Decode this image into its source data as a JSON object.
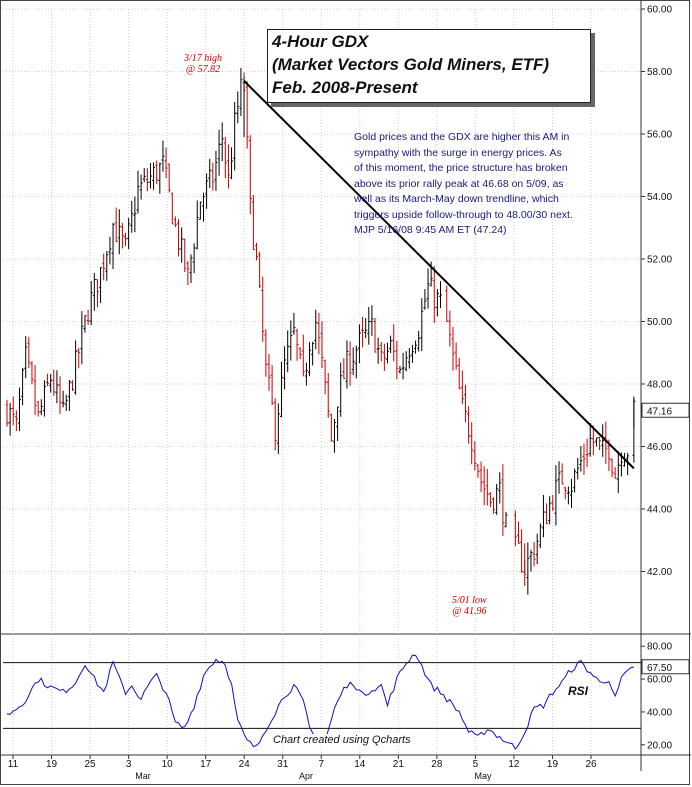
{
  "title": {
    "line1": "4-Hour GDX",
    "line2": "(Market Vectors Gold Miners, ETF)",
    "line3": "Feb. 2008-Present"
  },
  "commentary": [
    "Gold prices and the GDX are higher this AM in",
    "sympathy with the surge in energy prices. As",
    "of this moment, the price structure has broken",
    "above its prior rally peak at 46.68 on 5/09, as",
    "well as its March-May down trendline, which",
    "triggers upside follow-through to 48.00/30 next.",
    "MJP  5/16/08  9:45 AM ET  (47.24)"
  ],
  "annotations": {
    "high_line1": "3/17 high",
    "high_line2": "@ 57.82",
    "low_line1": "5/01 low",
    "low_line2": "@ 41.96"
  },
  "credit": "Chart created using Qcharts",
  "rsi_label": "RSI",
  "colors": {
    "up": "#000000",
    "down": "#cc0000",
    "rsi": "#1010c0",
    "trendline": "#000000"
  },
  "chart_data": {
    "type": "bar",
    "subtype": "ohlc",
    "price_axis": {
      "ylim": [
        40,
        60
      ],
      "ticks": [
        "42.00",
        "44.00",
        "46.00",
        "48.00",
        "50.00",
        "52.00",
        "54.00",
        "56.00",
        "58.00",
        "60.00"
      ]
    },
    "last_price": "47.16",
    "x_tick_labels": [
      "11",
      "19",
      "25",
      "3",
      "10",
      "17",
      "24",
      "31",
      "7",
      "14",
      "21",
      "28",
      "5",
      "12",
      "19",
      "26"
    ],
    "x_month_labels": [
      "Mar",
      "Apr",
      "May"
    ],
    "series": [
      {
        "name": "price",
        "anchors": [
          [
            0,
            47.2
          ],
          [
            3,
            46.6
          ],
          [
            6,
            48.8
          ],
          [
            10,
            46.9
          ],
          [
            14,
            48.2
          ],
          [
            18,
            47.0
          ],
          [
            22,
            48.6
          ],
          [
            26,
            50.4
          ],
          [
            30,
            51.6
          ],
          [
            34,
            53.1
          ],
          [
            38,
            52.3
          ],
          [
            42,
            54.2
          ],
          [
            46,
            54.6
          ],
          [
            50,
            55.0
          ],
          [
            54,
            53.0
          ],
          [
            58,
            51.4
          ],
          [
            62,
            53.9
          ],
          [
            66,
            54.6
          ],
          [
            69,
            55.9
          ],
          [
            71,
            54.5
          ],
          [
            73,
            56.3
          ],
          [
            75,
            57.4
          ],
          [
            76,
            57.5
          ],
          [
            78,
            53.6
          ],
          [
            80,
            51.9
          ],
          [
            83,
            48.4
          ],
          [
            86,
            46.6
          ],
          [
            89,
            48.6
          ],
          [
            92,
            49.6
          ],
          [
            95,
            48.0
          ],
          [
            97,
            49.4
          ],
          [
            99,
            50.0
          ],
          [
            101,
            48.6
          ],
          [
            104,
            46.2
          ],
          [
            106,
            47.6
          ],
          [
            109,
            48.6
          ],
          [
            113,
            49.3
          ],
          [
            117,
            49.8
          ],
          [
            120,
            48.7
          ],
          [
            123,
            49.2
          ],
          [
            126,
            48.4
          ],
          [
            129,
            49.2
          ],
          [
            132,
            49.8
          ],
          [
            135,
            51.1
          ],
          [
            137,
            50.8
          ],
          [
            140,
            50.5
          ],
          [
            143,
            48.8
          ],
          [
            146,
            47.2
          ],
          [
            149,
            46.3
          ],
          [
            152,
            44.9
          ],
          [
            155,
            44.3
          ],
          [
            158,
            44.6
          ],
          [
            161,
            42.8
          ],
          [
            164,
            42.6
          ],
          [
            166,
            42.1
          ],
          [
            169,
            42.7
          ],
          [
            172,
            43.6
          ],
          [
            175,
            44.4
          ],
          [
            178,
            45.0
          ],
          [
            181,
            44.8
          ],
          [
            184,
            45.5
          ],
          [
            187,
            46.2
          ],
          [
            189,
            46.1
          ],
          [
            191,
            45.8
          ],
          [
            193,
            46.0
          ],
          [
            195,
            45.1
          ],
          [
            197,
            45.9
          ],
          [
            199,
            45.9
          ],
          [
            201,
            47.1
          ]
        ]
      },
      {
        "name": "trendline",
        "from": [
          "3/17",
          57.7
        ],
        "to": [
          "5/16",
          45.3
        ]
      },
      {
        "name": "RSI",
        "ylim": [
          15,
          85
        ],
        "ticks": [
          "20.00",
          "40.00",
          "60.00",
          "80.00"
        ],
        "reference_lines": [
          30,
          70
        ],
        "last_value": "67.50",
        "anchors": [
          [
            0,
            38
          ],
          [
            5,
            45
          ],
          [
            10,
            60
          ],
          [
            14,
            55
          ],
          [
            18,
            52
          ],
          [
            22,
            58
          ],
          [
            25,
            70
          ],
          [
            28,
            60
          ],
          [
            31,
            52
          ],
          [
            34,
            70
          ],
          [
            36,
            60
          ],
          [
            38,
            52
          ],
          [
            40,
            56
          ],
          [
            43,
            48
          ],
          [
            46,
            58
          ],
          [
            48,
            62
          ],
          [
            51,
            52
          ],
          [
            54,
            33
          ],
          [
            57,
            30
          ],
          [
            60,
            44
          ],
          [
            63,
            62
          ],
          [
            65,
            68
          ],
          [
            67,
            72
          ],
          [
            70,
            70
          ],
          [
            72,
            56
          ],
          [
            74,
            34
          ],
          [
            77,
            22
          ],
          [
            80,
            18
          ],
          [
            83,
            30
          ],
          [
            86,
            40
          ],
          [
            89,
            50
          ],
          [
            92,
            56
          ],
          [
            95,
            46
          ],
          [
            97,
            30
          ],
          [
            99,
            24
          ],
          [
            102,
            22
          ],
          [
            105,
            42
          ],
          [
            108,
            54
          ],
          [
            111,
            58
          ],
          [
            114,
            50
          ],
          [
            117,
            54
          ],
          [
            120,
            56
          ],
          [
            122,
            44
          ],
          [
            125,
            60
          ],
          [
            128,
            70
          ],
          [
            131,
            76
          ],
          [
            133,
            68
          ],
          [
            136,
            56
          ],
          [
            139,
            52
          ],
          [
            142,
            46
          ],
          [
            145,
            40
          ],
          [
            148,
            28
          ],
          [
            151,
            24
          ],
          [
            154,
            30
          ],
          [
            157,
            26
          ],
          [
            160,
            22
          ],
          [
            163,
            18
          ],
          [
            166,
            28
          ],
          [
            169,
            42
          ],
          [
            172,
            44
          ],
          [
            175,
            52
          ],
          [
            178,
            58
          ],
          [
            181,
            66
          ],
          [
            184,
            70
          ],
          [
            187,
            64
          ],
          [
            190,
            58
          ],
          [
            193,
            60
          ],
          [
            195,
            48
          ],
          [
            197,
            60
          ],
          [
            201,
            68
          ]
        ]
      }
    ]
  }
}
